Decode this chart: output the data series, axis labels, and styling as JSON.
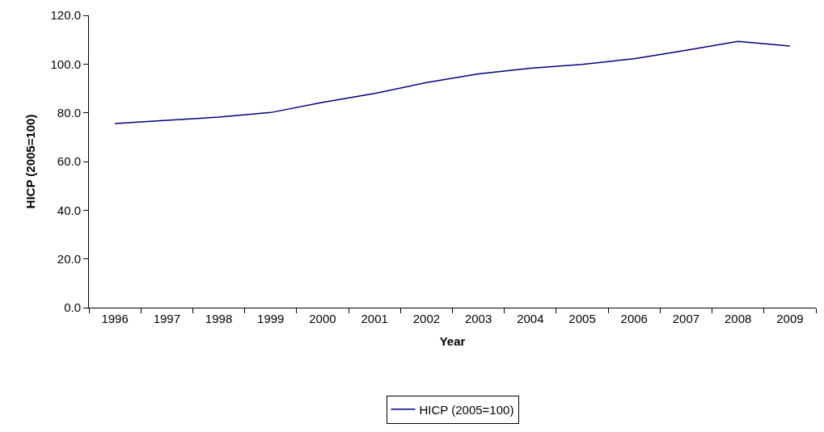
{
  "chart_data": {
    "type": "line",
    "xlabel": "Year",
    "ylabel": "HICP (2005=100)",
    "categories": [
      "1996",
      "1997",
      "1998",
      "1999",
      "2000",
      "2001",
      "2002",
      "2003",
      "2004",
      "2005",
      "2006",
      "2007",
      "2008",
      "2009"
    ],
    "series": [
      {
        "name": "HICP (2005=100)",
        "color": "#000080",
        "values": [
          75.6,
          76.9,
          78.2,
          80.1,
          84.3,
          87.9,
          92.4,
          96.0,
          98.3,
          99.9,
          102.2,
          105.7,
          109.3,
          107.4
        ]
      }
    ],
    "ylim": [
      0,
      120
    ],
    "yticks": [
      {
        "value": 0,
        "label": "0.0"
      },
      {
        "value": 20,
        "label": "20.0"
      },
      {
        "value": 40,
        "label": "40.0"
      },
      {
        "value": 60,
        "label": "60.0"
      },
      {
        "value": 80,
        "label": "80.0"
      },
      {
        "value": 100,
        "label": "100.0"
      },
      {
        "value": 120,
        "label": "120.0"
      }
    ],
    "grid": false,
    "legend": "bottom",
    "marker": "none",
    "line_style": "solid"
  }
}
